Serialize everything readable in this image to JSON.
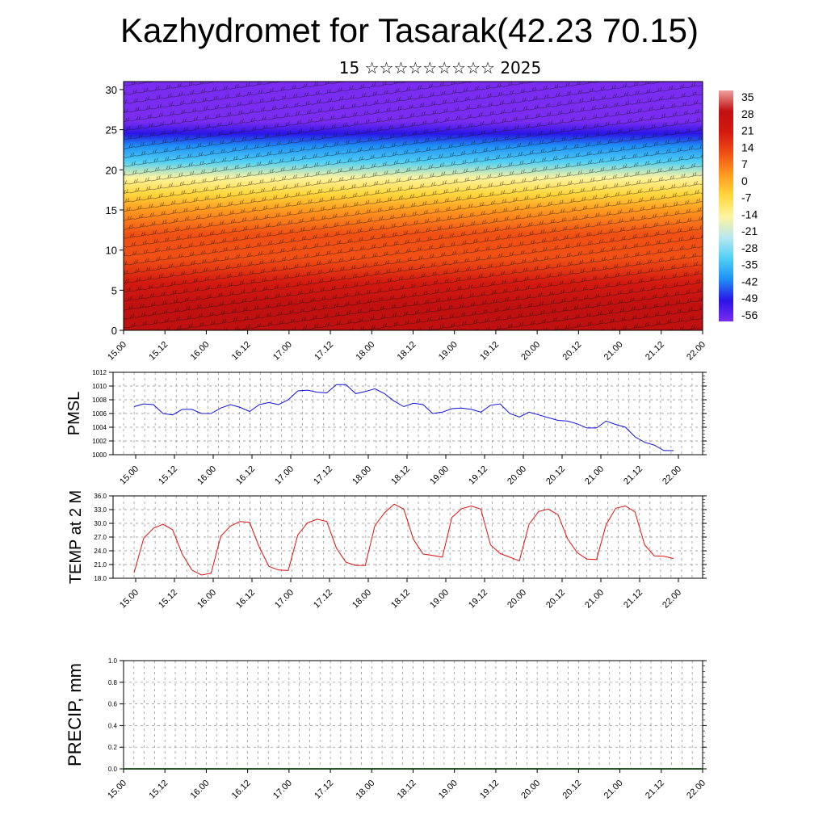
{
  "title": "Kazhydromet for Tasarak(42.23 70.15)",
  "subtitle": "15 ☆☆☆☆☆☆☆☆☆ 2025",
  "time_labels": [
    "15.00",
    "15.12",
    "16.00",
    "16.12",
    "17.00",
    "17.12",
    "18.00",
    "18.12",
    "19.00",
    "19.12",
    "20.00",
    "20.12",
    "21.00",
    "21.12",
    "22.00"
  ],
  "chart_data": [
    {
      "type": "heatmap",
      "description_axis": "height",
      "y_ticks": [
        "0",
        "5",
        "10",
        "15",
        "20",
        "25",
        "30"
      ],
      "ylim": [
        0,
        31
      ],
      "colorbar_labels": [
        "35",
        "28",
        "21",
        "14",
        "7",
        "0",
        "-7",
        "-14",
        "-21",
        "-28",
        "-35",
        "-42",
        "-49",
        "-56"
      ],
      "colorbar_range": [
        -63,
        42
      ],
      "colorbar_colors": [
        "#7a2cf0",
        "#2a14e6",
        "#1e8ff5",
        "#50d0f5",
        "#b8e8f0",
        "#fff4a0",
        "#ffd73c",
        "#ff9a20",
        "#f05014",
        "#d41a10",
        "#c01010",
        "#f0a0a0"
      ],
      "profile": {
        "heights": [
          0,
          3,
          6,
          9,
          12,
          15,
          17,
          19,
          21,
          23,
          24.5,
          26,
          31
        ],
        "temps": [
          32,
          29,
          24,
          18,
          10,
          0,
          -8,
          -20,
          -33,
          -44,
          -55,
          -60,
          -62
        ]
      },
      "x_ticks_ref": "time_labels"
    },
    {
      "type": "line",
      "ylabel": "PMSL",
      "ylim": [
        1000,
        1012
      ],
      "y_ticks": [
        "1000",
        "1002",
        "1004",
        "1006",
        "1008",
        "1010",
        "1012"
      ],
      "color": "#1010e0",
      "x_ticks_ref": "time_labels",
      "values": [
        1007,
        1007.4,
        1007.3,
        1006,
        1005.8,
        1006.6,
        1006.6,
        1006,
        1006,
        1006.8,
        1007.3,
        1006.9,
        1006.3,
        1007.3,
        1007.6,
        1007.3,
        1008,
        1009.3,
        1009.4,
        1009.1,
        1009,
        1010.2,
        1010.2,
        1008.9,
        1009.2,
        1009.6,
        1008.9,
        1007.8,
        1007,
        1007.5,
        1007.3,
        1006,
        1006.2,
        1006.7,
        1006.8,
        1006.6,
        1006.2,
        1007.2,
        1007.4,
        1006,
        1005.5,
        1006.2,
        1005.8,
        1005.4,
        1005,
        1004.9,
        1004.5,
        1003.9,
        1003.9,
        1004.9,
        1004.4,
        1004,
        1002.6,
        1001.8,
        1001.4,
        1000.6,
        1000.6
      ]
    },
    {
      "type": "line",
      "ylabel": "TEMP at 2 M",
      "ylim": [
        18,
        36
      ],
      "y_ticks": [
        "18.0",
        "21.0",
        "24.0",
        "27.0",
        "30.0",
        "33.0",
        "36.0"
      ],
      "color": "#e01010",
      "x_ticks_ref": "time_labels",
      "values": [
        19.2,
        26.7,
        28.9,
        29.8,
        28.6,
        23.3,
        19.8,
        18.7,
        19.1,
        27.2,
        29.4,
        30.4,
        30.2,
        24.8,
        20.6,
        19.8,
        19.7,
        27.5,
        30.1,
        30.9,
        30.4,
        24.6,
        21.5,
        20.8,
        20.8,
        29.5,
        32.3,
        34.2,
        33.1,
        26.5,
        23.3,
        23,
        22.6,
        31.3,
        33.2,
        33.8,
        33.1,
        25.3,
        23.4,
        22.6,
        21.8,
        29.8,
        32.6,
        33.1,
        31.9,
        26.6,
        23.6,
        22.2,
        22.1,
        29.7,
        33.3,
        33.8,
        32.5,
        25.3,
        22.9,
        22.8,
        22.3
      ]
    },
    {
      "type": "bar",
      "ylabel": "PRECIP, mm",
      "ylim": [
        0,
        1
      ],
      "y_ticks": [
        "0.0",
        "0.2",
        "0.4",
        "0.6",
        "0.8",
        "1.0"
      ],
      "x_ticks_ref": "time_labels",
      "values": [
        0,
        0,
        0,
        0,
        0,
        0,
        0,
        0,
        0,
        0,
        0,
        0,
        0,
        0,
        0,
        0,
        0,
        0,
        0,
        0,
        0,
        0,
        0,
        0,
        0,
        0,
        0,
        0,
        0,
        0,
        0,
        0,
        0,
        0,
        0,
        0,
        0,
        0,
        0,
        0,
        0,
        0,
        0,
        0,
        0,
        0,
        0,
        0,
        0,
        0,
        0,
        0,
        0,
        0,
        0,
        0,
        0
      ]
    }
  ]
}
